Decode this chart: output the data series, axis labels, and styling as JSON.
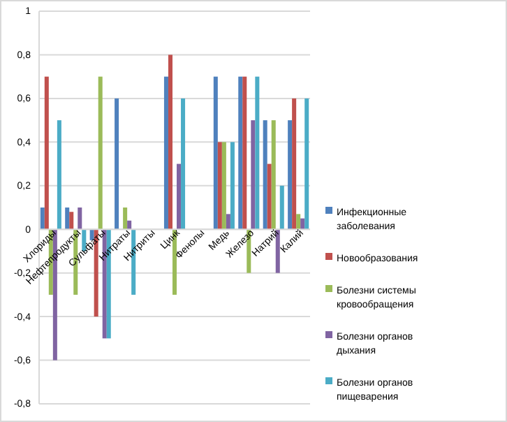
{
  "chart_data": {
    "type": "bar",
    "categories": [
      "Хлориды",
      "Нефтепродукты",
      "Сульфаты",
      "Нитраты",
      "Нитриты",
      "Цинк",
      "Фенолы",
      "Медь",
      "Железо",
      "Натрий",
      "Калий"
    ],
    "series": [
      {
        "name": "Инфекционные заболевания",
        "color": "#4f81bd",
        "values": [
          0.1,
          0.1,
          -0.05,
          0.6,
          null,
          0.7,
          null,
          0.7,
          0.7,
          0.5,
          0.5
        ]
      },
      {
        "name": "Новообразования",
        "color": "#c0504d",
        "values": [
          0.7,
          0.08,
          -0.4,
          null,
          null,
          0.8,
          null,
          0.4,
          0.7,
          0.3,
          0.6
        ]
      },
      {
        "name": "Болезни системы кровообращения",
        "color": "#9bbb59",
        "values": [
          -0.3,
          -0.3,
          0.7,
          0.1,
          null,
          -0.3,
          null,
          0.4,
          -0.2,
          0.5,
          0.07
        ]
      },
      {
        "name": "Болезни органов дыхания",
        "color": "#8064a2",
        "values": [
          -0.6,
          0.1,
          -0.5,
          0.04,
          null,
          0.3,
          null,
          0.07,
          0.5,
          -0.2,
          0.05
        ]
      },
      {
        "name": "Болезни органов пищеварения",
        "color": "#4bacc6",
        "values": [
          0.5,
          -0.1,
          -0.5,
          -0.3,
          null,
          0.6,
          null,
          0.4,
          0.7,
          0.2,
          0.6
        ]
      }
    ],
    "ylim": [
      -0.8,
      1
    ],
    "yticks": [
      {
        "value": -0.8,
        "label": "-0,8"
      },
      {
        "value": -0.6,
        "label": "-0,6"
      },
      {
        "value": -0.4,
        "label": "-0,4"
      },
      {
        "value": -0.2,
        "label": "-0,2"
      },
      0,
      {
        "value": 0.2,
        "label": "0,2"
      },
      {
        "value": 0.4,
        "label": "0,4"
      },
      {
        "value": 0.6,
        "label": "0,6"
      },
      {
        "value": 0.8,
        "label": "0,8"
      },
      1
    ],
    "grid": "y",
    "legend": "right"
  }
}
